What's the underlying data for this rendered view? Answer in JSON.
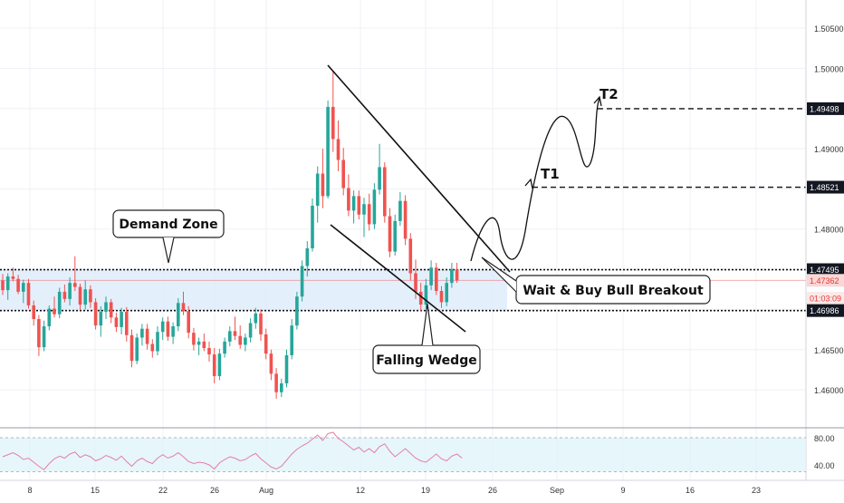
{
  "chart_data": [
    {
      "type": "candlestick",
      "price_axis": {
        "ticks": [
          "1.50500",
          "1.50000",
          "1.49500",
          "1.49000",
          "1.48500",
          "1.48000",
          "1.47500",
          "1.47000",
          "1.46500",
          "1.46000"
        ],
        "ylim": [
          1.4555,
          1.5085
        ]
      },
      "time_axis": {
        "labels": [
          "8",
          "15",
          "22",
          "26",
          "Aug",
          "12",
          "19",
          "26",
          "Sep",
          "9",
          "16",
          "23"
        ]
      },
      "price_labels": [
        {
          "value": 1.49498,
          "text": "1.49498",
          "style": "dark"
        },
        {
          "value": 1.48521,
          "text": "1.48521",
          "style": "dark"
        },
        {
          "value": 1.47495,
          "text": "1.47495",
          "style": "dark"
        },
        {
          "value": 1.47362,
          "text": "1.47362",
          "style": "current"
        },
        {
          "value": 1.4714,
          "text": "01:03:09",
          "style": "current-faint"
        },
        {
          "value": 1.46986,
          "text": "1.46986",
          "style": "dark"
        }
      ],
      "levels": {
        "demand_zone_top": 1.47495,
        "demand_zone_bottom": 1.46986,
        "current_price": 1.47362,
        "t1": 1.48521,
        "t2": 1.49498
      },
      "annotations": {
        "demand_zone": "Demand Zone",
        "falling_wedge": "Falling Wedge",
        "breakout": "Wait & Buy Bull Breakout",
        "t1": "T1",
        "t2": "T2"
      },
      "candles_ohlc": [
        [
          1.4736,
          1.4744,
          1.4718,
          1.4724
        ],
        [
          1.4724,
          1.4745,
          1.4712,
          1.4741
        ],
        [
          1.4741,
          1.4752,
          1.4735,
          1.4738
        ],
        [
          1.4738,
          1.4743,
          1.4719,
          1.4722
        ],
        [
          1.4722,
          1.4737,
          1.4708,
          1.4733
        ],
        [
          1.4733,
          1.4738,
          1.4701,
          1.4705
        ],
        [
          1.4705,
          1.4711,
          1.468,
          1.4688
        ],
        [
          1.4688,
          1.4693,
          1.4642,
          1.4653
        ],
        [
          1.4653,
          1.4686,
          1.4648,
          1.4679
        ],
        [
          1.4679,
          1.4705,
          1.4674,
          1.4701
        ],
        [
          1.4701,
          1.4716,
          1.469,
          1.4694
        ],
        [
          1.4694,
          1.4727,
          1.4689,
          1.4722
        ],
        [
          1.4722,
          1.4731,
          1.4709,
          1.4713
        ],
        [
          1.4713,
          1.474,
          1.4705,
          1.4733
        ],
        [
          1.4733,
          1.4766,
          1.4723,
          1.4728
        ],
        [
          1.4728,
          1.4732,
          1.4699,
          1.4706
        ],
        [
          1.4706,
          1.4736,
          1.47,
          1.4725
        ],
        [
          1.4725,
          1.473,
          1.4702,
          1.4709
        ],
        [
          1.4709,
          1.4714,
          1.4675,
          1.468
        ],
        [
          1.468,
          1.4704,
          1.4666,
          1.4697
        ],
        [
          1.4697,
          1.4716,
          1.4688,
          1.4709
        ],
        [
          1.4709,
          1.4713,
          1.4683,
          1.469
        ],
        [
          1.469,
          1.4696,
          1.4672,
          1.4678
        ],
        [
          1.4678,
          1.4702,
          1.4669,
          1.4697
        ],
        [
          1.4697,
          1.4703,
          1.466,
          1.4668
        ],
        [
          1.4668,
          1.4675,
          1.4628,
          1.4636
        ],
        [
          1.4636,
          1.467,
          1.4632,
          1.4665
        ],
        [
          1.4665,
          1.4682,
          1.4655,
          1.4676
        ],
        [
          1.4676,
          1.4682,
          1.465,
          1.4657
        ],
        [
          1.4657,
          1.4663,
          1.464,
          1.4648
        ],
        [
          1.4648,
          1.4679,
          1.4643,
          1.4672
        ],
        [
          1.4672,
          1.469,
          1.4662,
          1.4685
        ],
        [
          1.4685,
          1.4691,
          1.4661,
          1.4666
        ],
        [
          1.4666,
          1.4684,
          1.4657,
          1.4679
        ],
        [
          1.4679,
          1.4714,
          1.4673,
          1.4708
        ],
        [
          1.4708,
          1.4722,
          1.4693,
          1.4698
        ],
        [
          1.4698,
          1.4704,
          1.4664,
          1.4671
        ],
        [
          1.4671,
          1.4677,
          1.4649,
          1.4656
        ],
        [
          1.4656,
          1.4665,
          1.4643,
          1.466
        ],
        [
          1.466,
          1.467,
          1.4648,
          1.4652
        ],
        [
          1.4652,
          1.466,
          1.4635,
          1.4644
        ],
        [
          1.4644,
          1.4652,
          1.4608,
          1.4617
        ],
        [
          1.4617,
          1.4651,
          1.4612,
          1.4645
        ],
        [
          1.4645,
          1.4665,
          1.464,
          1.466
        ],
        [
          1.466,
          1.4679,
          1.4654,
          1.4673
        ],
        [
          1.4673,
          1.4691,
          1.4662,
          1.4667
        ],
        [
          1.4667,
          1.468,
          1.4651,
          1.4656
        ],
        [
          1.4656,
          1.467,
          1.4648,
          1.4665
        ],
        [
          1.4665,
          1.4689,
          1.4659,
          1.4683
        ],
        [
          1.4683,
          1.4702,
          1.4676,
          1.4695
        ],
        [
          1.4695,
          1.47,
          1.4661,
          1.4669
        ],
        [
          1.4669,
          1.4676,
          1.4638,
          1.4645
        ],
        [
          1.4645,
          1.465,
          1.4612,
          1.462
        ],
        [
          1.462,
          1.4627,
          1.4589,
          1.4597
        ],
        [
          1.4597,
          1.4614,
          1.4591,
          1.4608
        ],
        [
          1.4608,
          1.465,
          1.4603,
          1.4643
        ],
        [
          1.4643,
          1.4688,
          1.4638,
          1.468
        ],
        [
          1.468,
          1.4722,
          1.4675,
          1.4716
        ],
        [
          1.4716,
          1.4761,
          1.471,
          1.4754
        ],
        [
          1.4754,
          1.4785,
          1.4741,
          1.4776
        ],
        [
          1.4776,
          1.4838,
          1.4772,
          1.4829
        ],
        [
          1.4829,
          1.4878,
          1.4808,
          1.4869
        ],
        [
          1.4869,
          1.49,
          1.4826,
          1.4841
        ],
        [
          1.4841,
          1.496,
          1.4838,
          1.4952
        ],
        [
          1.4952,
          1.4997,
          1.4896,
          1.4912
        ],
        [
          1.4912,
          1.4935,
          1.4872,
          1.4886
        ],
        [
          1.4886,
          1.4901,
          1.4842,
          1.4851
        ],
        [
          1.4851,
          1.4868,
          1.4816,
          1.4823
        ],
        [
          1.4823,
          1.4848,
          1.4807,
          1.4841
        ],
        [
          1.4841,
          1.4848,
          1.4812,
          1.4818
        ],
        [
          1.4818,
          1.4839,
          1.479,
          1.4831
        ],
        [
          1.4831,
          1.4844,
          1.4798,
          1.4806
        ],
        [
          1.4806,
          1.4857,
          1.48,
          1.4849
        ],
        [
          1.4849,
          1.4906,
          1.4843,
          1.4877
        ],
        [
          1.4877,
          1.4883,
          1.4808,
          1.4816
        ],
        [
          1.4816,
          1.4826,
          1.4765,
          1.4772
        ],
        [
          1.4772,
          1.4818,
          1.4767,
          1.481
        ],
        [
          1.481,
          1.4846,
          1.4804,
          1.4835
        ],
        [
          1.4835,
          1.4842,
          1.478,
          1.4788
        ],
        [
          1.4788,
          1.4795,
          1.4736,
          1.4745
        ],
        [
          1.4745,
          1.4762,
          1.4713,
          1.4722
        ],
        [
          1.4722,
          1.4733,
          1.4698,
          1.4706
        ],
        [
          1.4706,
          1.4738,
          1.4701,
          1.473
        ],
        [
          1.473,
          1.4761,
          1.4724,
          1.4752
        ],
        [
          1.4752,
          1.4758,
          1.4718,
          1.4723
        ],
        [
          1.4723,
          1.4729,
          1.4702,
          1.4709
        ],
        [
          1.4709,
          1.474,
          1.4704,
          1.4733
        ],
        [
          1.4733,
          1.4758,
          1.4727,
          1.475
        ],
        [
          1.475,
          1.4758,
          1.4733,
          1.4736
        ]
      ]
    },
    {
      "type": "line",
      "name": "RSI",
      "y_ticks": [
        "80.00",
        "40.00"
      ],
      "ylim": [
        20,
        92
      ],
      "band": [
        30,
        80
      ],
      "values": [
        52,
        55,
        58,
        54,
        48,
        50,
        44,
        38,
        33,
        42,
        49,
        53,
        50,
        56,
        59,
        51,
        55,
        52,
        46,
        49,
        54,
        51,
        47,
        53,
        45,
        38,
        46,
        50,
        45,
        42,
        50,
        55,
        50,
        53,
        58,
        52,
        45,
        42,
        44,
        43,
        40,
        34,
        43,
        48,
        52,
        50,
        46,
        48,
        53,
        57,
        49,
        43,
        37,
        34,
        38,
        47,
        56,
        63,
        68,
        72,
        78,
        84,
        76,
        86,
        88,
        79,
        74,
        68,
        62,
        66,
        59,
        64,
        58,
        67,
        71,
        60,
        52,
        58,
        64,
        57,
        50,
        46,
        44,
        50,
        56,
        49,
        46,
        53,
        56,
        50
      ]
    }
  ]
}
